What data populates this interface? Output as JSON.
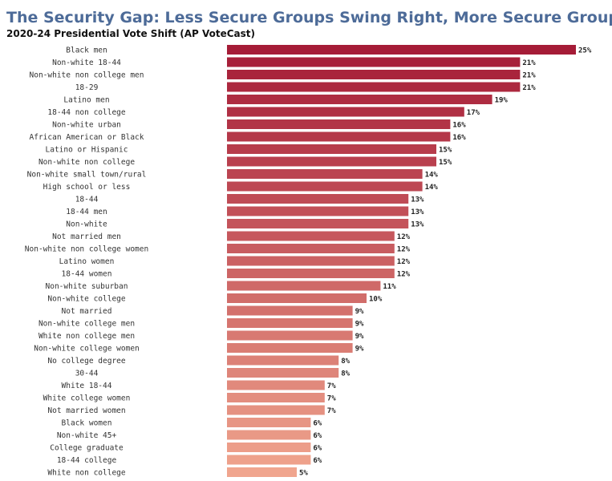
{
  "chart_data": {
    "type": "hbar",
    "title": "The Security Gap: Less Secure Groups Swing Right, More Secure Groups Hold Steady",
    "subtitle": "2020-24 Presidential Vote Shift (AP VoteCast)",
    "categories": [
      "Black men",
      "Non-white 18-44",
      "Non-white non college men",
      "18-29",
      "Latino men",
      "18-44 non college",
      "Non-white urban",
      "African American or Black",
      "Latino or Hispanic",
      "Non-white non college",
      "Non-white small town/rural",
      "High school or less",
      "18-44",
      "18-44 men",
      "Non-white",
      "Not married men",
      "Non-white non college women",
      "Latino women",
      "18-44 women",
      "Non-white suburban",
      "Non-white college",
      "Not married",
      "Non-white college men",
      "White non college men",
      "Non-white college women",
      "No college degree",
      "30-44",
      "White 18-44",
      "White college women",
      "Not married women",
      "Black women",
      "Non-white 45+",
      "College graduate",
      "18-44 college",
      "White non college"
    ],
    "values": [
      25,
      21,
      21,
      21,
      19,
      17,
      16,
      16,
      15,
      15,
      14,
      14,
      13,
      13,
      13,
      12,
      12,
      12,
      12,
      11,
      10,
      9,
      9,
      9,
      9,
      8,
      8,
      7,
      7,
      7,
      6,
      6,
      6,
      6,
      5
    ],
    "value_labels": [
      "25%",
      "21%",
      "21%",
      "21%",
      "19%",
      "17%",
      "16%",
      "16%",
      "15%",
      "15%",
      "14%",
      "14%",
      "13%",
      "13%",
      "13%",
      "12%",
      "12%",
      "12%",
      "12%",
      "11%",
      "10%",
      "9%",
      "9%",
      "9%",
      "9%",
      "8%",
      "8%",
      "7%",
      "7%",
      "7%",
      "6%",
      "6%",
      "6%",
      "6%",
      "5%"
    ],
    "gradient": [
      "#a51c37",
      "#f0a58e"
    ]
  }
}
